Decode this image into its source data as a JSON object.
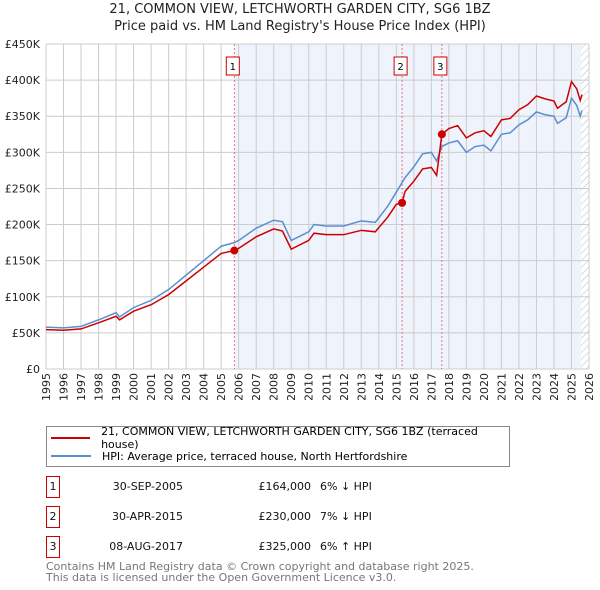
{
  "chart_data": {
    "type": "line",
    "title": "21, COMMON VIEW, LETCHWORTH GARDEN CITY, SG6 1BZ",
    "subtitle": "Price paid vs. HM Land Registry's House Price Index (HPI)",
    "xlim": [
      1995,
      2026
    ],
    "ylim": [
      0,
      450000
    ],
    "yticks": [
      {
        "v": 0,
        "label": "£0"
      },
      {
        "v": 50000,
        "label": "£50K"
      },
      {
        "v": 100000,
        "label": "£100K"
      },
      {
        "v": 150000,
        "label": "£150K"
      },
      {
        "v": 200000,
        "label": "£200K"
      },
      {
        "v": 250000,
        "label": "£250K"
      },
      {
        "v": 300000,
        "label": "£300K"
      },
      {
        "v": 350000,
        "label": "£350K"
      },
      {
        "v": 400000,
        "label": "£400K"
      },
      {
        "v": 450000,
        "label": "£450K"
      }
    ],
    "xticks": [
      "1995",
      "1996",
      "1997",
      "1998",
      "1999",
      "2000",
      "2001",
      "2002",
      "2003",
      "2004",
      "2005",
      "2006",
      "2007",
      "2008",
      "2009",
      "2010",
      "2011",
      "2012",
      "2013",
      "2014",
      "2015",
      "2016",
      "2017",
      "2018",
      "2019",
      "2020",
      "2021",
      "2022",
      "2023",
      "2024",
      "2025",
      "2026"
    ],
    "series": [
      {
        "name": "21, COMMON VIEW, LETCHWORTH GARDEN CITY, SG6 1BZ (terraced house)",
        "color": "#cc0000",
        "x": [
          1995,
          1996,
          1997,
          1998,
          1999,
          1999.2,
          2000,
          2001,
          2002,
          2003,
          2004,
          2005,
          2005.75,
          2006,
          2007,
          2008,
          2008.5,
          2009,
          2010,
          2010.3,
          2011,
          2012,
          2013,
          2013.8,
          2014.5,
          2015,
          2015.33,
          2015.5,
          2016,
          2016.5,
          2017,
          2017.3,
          2017.6,
          2018,
          2018.5,
          2019,
          2019.5,
          2020,
          2020.4,
          2021,
          2021.5,
          2022,
          2022.5,
          2023,
          2023.5,
          2024,
          2024.2,
          2024.7,
          2025,
          2025.3,
          2025.5,
          2025.6
        ],
        "y": [
          54500,
          53600,
          55500,
          64000,
          73000,
          68000,
          80000,
          89000,
          103000,
          122000,
          141000,
          160000,
          164000,
          167000,
          183000,
          194000,
          191000,
          166000,
          178000,
          188000,
          186000,
          186000,
          192000,
          190000,
          210000,
          228000,
          230000,
          246000,
          260000,
          277000,
          279000,
          268000,
          325000,
          333000,
          337000,
          320000,
          327000,
          330000,
          322000,
          345000,
          347000,
          359000,
          366000,
          378000,
          374000,
          371000,
          361000,
          370000,
          398000,
          388000,
          372000,
          380000
        ]
      },
      {
        "name": "HPI: Average price, terraced house, North Hertfordshire",
        "color": "#5b8fd0",
        "x": [
          1995,
          1996,
          1997,
          1998,
          1999,
          1999.2,
          2000,
          2001,
          2002,
          2003,
          2004,
          2005,
          2005.75,
          2006,
          2007,
          2008,
          2008.5,
          2009,
          2010,
          2010.3,
          2011,
          2012,
          2013,
          2013.8,
          2014.5,
          2015,
          2015.5,
          2016,
          2016.5,
          2017,
          2017.3,
          2017.6,
          2018,
          2018.5,
          2019,
          2019.5,
          2020,
          2020.4,
          2021,
          2021.5,
          2022,
          2022.5,
          2023,
          2023.5,
          2024,
          2024.2,
          2024.7,
          2025,
          2025.3,
          2025.5,
          2025.6
        ],
        "y": [
          58000,
          57000,
          59000,
          68000,
          78000,
          72000,
          85000,
          95000,
          110000,
          130000,
          150000,
          170000,
          175000,
          178000,
          195000,
          206000,
          204000,
          178000,
          190000,
          200000,
          198000,
          198000,
          205000,
          203000,
          225000,
          245000,
          265000,
          280000,
          298000,
          300000,
          288000,
          308000,
          313000,
          316000,
          300000,
          308000,
          310000,
          302000,
          325000,
          327000,
          338000,
          345000,
          356000,
          352000,
          350000,
          340000,
          348000,
          375000,
          365000,
          350000,
          358000
        ]
      }
    ],
    "sales": [
      {
        "id": "1",
        "x": 2005.75,
        "y": 164000,
        "date": "30-SEP-2005",
        "price": "£164,000",
        "hpi": "6% ↓ HPI"
      },
      {
        "id": "2",
        "x": 2015.33,
        "y": 230000,
        "date": "30-APR-2015",
        "price": "£230,000",
        "hpi": "7% ↓ HPI"
      },
      {
        "id": "3",
        "x": 2017.6,
        "y": 325000,
        "date": "08-AUG-2017",
        "price": "£325,000",
        "hpi": "6% ↑ HPI"
      }
    ],
    "shade_from": 2005.75,
    "hatch_from": 2025.55
  },
  "legend": {
    "price": "21, COMMON VIEW, LETCHWORTH GARDEN CITY, SG6 1BZ (terraced house)",
    "hpi": "HPI: Average price, terraced house, North Hertfordshire"
  },
  "footer": {
    "line1": "Contains HM Land Registry data © Crown copyright and database right 2025.",
    "line2": "This data is licensed under the Open Government Licence v3.0."
  }
}
